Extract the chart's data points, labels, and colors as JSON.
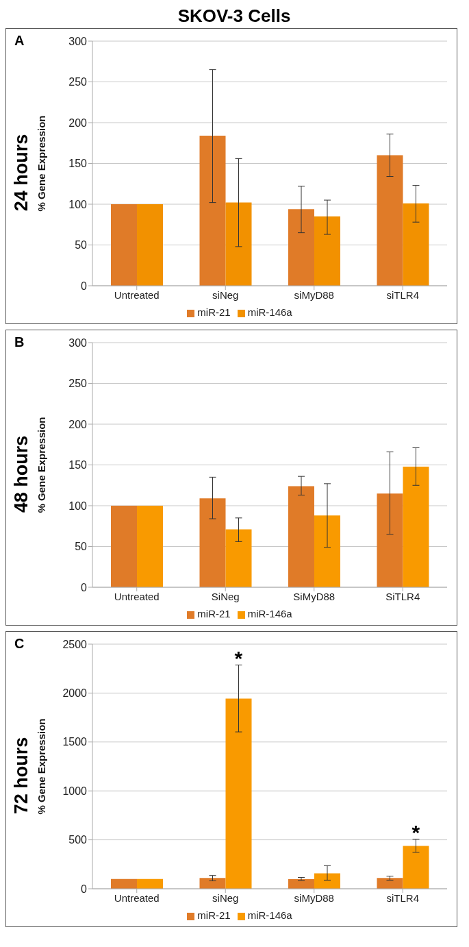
{
  "chart_data": [
    {
      "type": "bar",
      "title": "SKOV-3 Cells",
      "ylabel": "% Gene Expression",
      "annotations": [
        "A",
        "24 hours"
      ],
      "categories": [
        "Untreated",
        "siNeg",
        "siMyD88",
        "siTLR4"
      ],
      "series": [
        {
          "name": "miR-21",
          "color": "#e07b28",
          "values": [
            100,
            184,
            94,
            160
          ],
          "errors": [
            null,
            [
              102,
              265
            ],
            [
              65,
              122
            ],
            [
              134,
              186
            ]
          ]
        },
        {
          "name": "miR-146a",
          "color": "#f29100",
          "values": [
            100,
            102,
            85,
            101
          ],
          "errors": [
            null,
            [
              48,
              156
            ],
            [
              63,
              105
            ],
            [
              78,
              123
            ]
          ]
        }
      ],
      "ylim": [
        0,
        300
      ],
      "yticks": [
        0,
        50,
        100,
        150,
        200,
        250,
        300
      ],
      "grid": "y",
      "legend": "bottom"
    },
    {
      "type": "bar",
      "ylabel": "% Gene Expression",
      "annotations": [
        "B",
        "48 hours"
      ],
      "categories": [
        "Untreated",
        "SiNeg",
        "SiMyD88",
        "SiTLR4"
      ],
      "series": [
        {
          "name": "miR-21",
          "color": "#e07b28",
          "values": [
            100,
            109,
            124,
            115
          ],
          "errors": [
            null,
            [
              84,
              135
            ],
            [
              113,
              136
            ],
            [
              65,
              166
            ]
          ]
        },
        {
          "name": "miR-146a",
          "color": "#f99a00",
          "values": [
            100,
            71,
            88,
            148
          ],
          "errors": [
            null,
            [
              56,
              85
            ],
            [
              49,
              127
            ],
            [
              125,
              171
            ]
          ]
        }
      ],
      "ylim": [
        0,
        300
      ],
      "yticks": [
        0,
        50,
        100,
        150,
        200,
        250,
        300
      ],
      "grid": "y",
      "legend": "bottom"
    },
    {
      "type": "bar",
      "ylabel": "% Gene Expression",
      "annotations": [
        "C",
        "72 hours",
        {
          "text": "*",
          "x": "siNeg",
          "y": 1943
        },
        {
          "text": "*",
          "x": "siTLR4",
          "y": 437
        }
      ],
      "categories": [
        "Untreated",
        "siNeg",
        "siMyD88",
        "siTLR4"
      ],
      "series": [
        {
          "name": "miR-21",
          "color": "#e07b28",
          "values": [
            100,
            110,
            98,
            110
          ],
          "errors": [
            null,
            [
              82,
              135
            ],
            [
              85,
              116
            ],
            [
              88,
              129
            ]
          ]
        },
        {
          "name": "miR-146a",
          "color": "#f99a00",
          "values": [
            100,
            1943,
            157,
            437
          ],
          "errors": [
            null,
            [
              1603,
              2287
            ],
            [
              88,
              236
            ],
            [
              372,
              506
            ]
          ]
        }
      ],
      "ylim": [
        0,
        2500
      ],
      "yticks": [
        0,
        500,
        1000,
        1500,
        2000,
        2500
      ],
      "grid": "y",
      "legend": "bottom"
    }
  ]
}
